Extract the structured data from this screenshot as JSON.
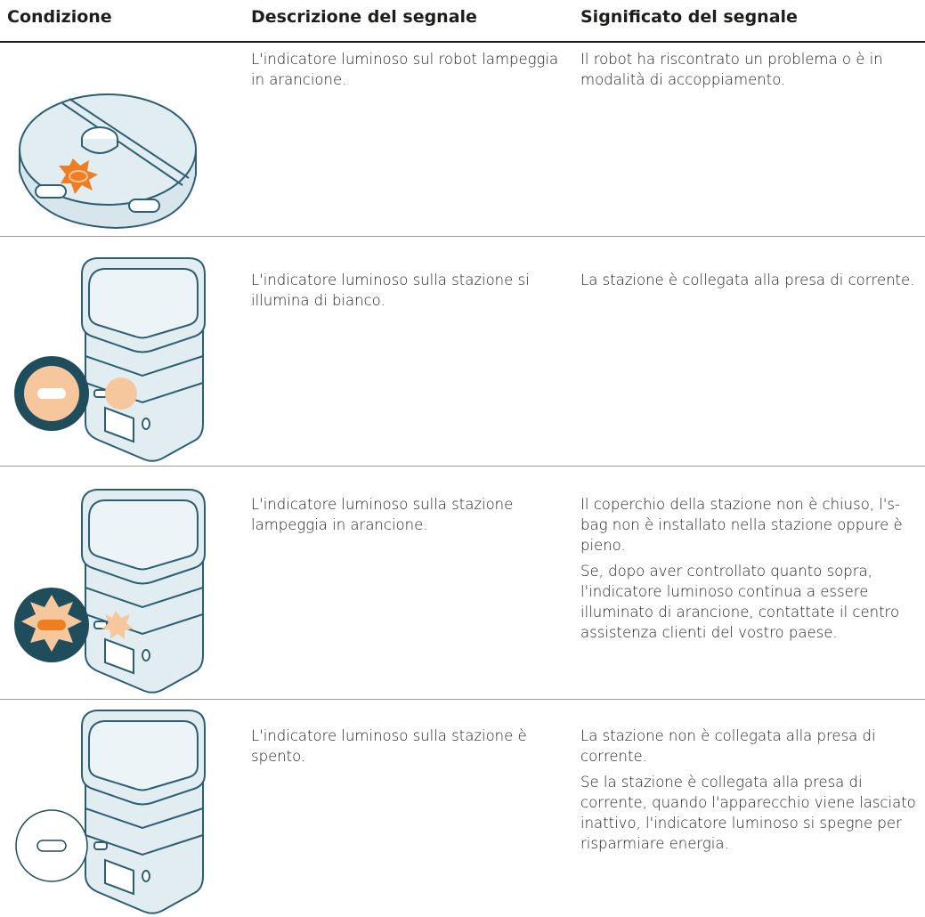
{
  "table": {
    "headers": [
      "Condizione",
      "Descrizione del segnale",
      "Significato del segnale"
    ],
    "rows": [
      {
        "description": "L'indicatore luminoso sul robot lampeggia in arancione.",
        "meaning": [
          "Il robot ha riscontrato un problema o è in modalità di accoppiamento."
        ]
      },
      {
        "description": "L'indicatore luminoso sulla stazione si illumina di bianco.",
        "meaning": [
          "La stazione è collegata alla presa di corrente."
        ]
      },
      {
        "description": "L'indicatore luminoso sulla stazione lampeggia in arancione.",
        "meaning": [
          "Il coperchio della stazione non è chiuso, l's-bag non è installato nella stazione oppure è pieno.",
          "Se, dopo aver controllato quanto sopra, l'indicatore luminoso continua a essere illuminato di arancione, contattate il centro assistenza clienti del vostro paese."
        ]
      },
      {
        "description": "L'indicatore luminoso sulla stazione è spento.",
        "meaning": [
          "La stazione non è collegata alla presa di corrente.",
          "Se la stazione è collegata alla presa di corrente, quando l'apparecchio viene lasciato inattivo, l'indicatore luminoso si spegne per risparmiare energia."
        ]
      }
    ]
  }
}
